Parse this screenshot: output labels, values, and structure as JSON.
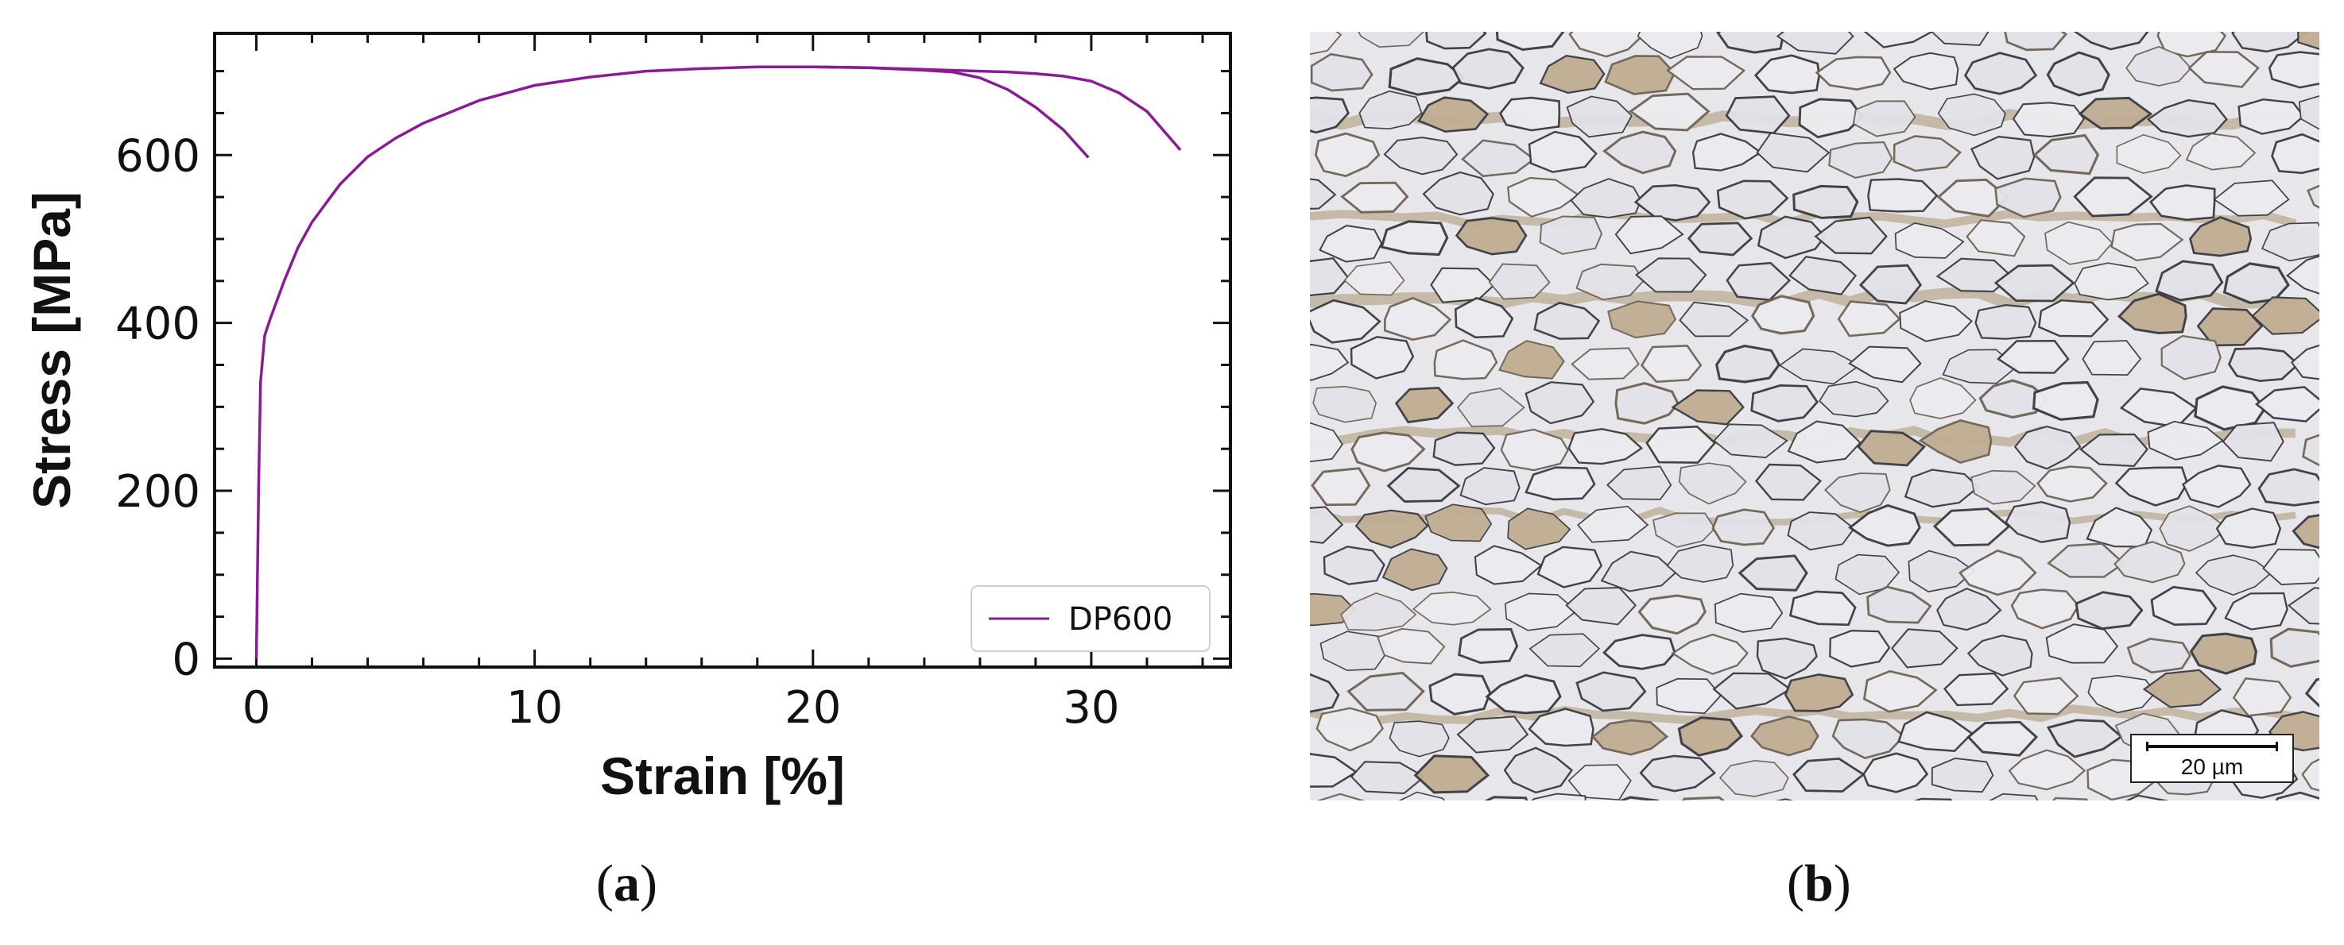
{
  "chart_data": {
    "type": "line",
    "xlabel": "Strain [%]",
    "ylabel": "Stress [MPa]",
    "xlim": [
      -1.5,
      35
    ],
    "ylim": [
      -10,
      745
    ],
    "xticks": [
      0,
      10,
      20,
      30
    ],
    "yticks": [
      0,
      200,
      400,
      600
    ],
    "grid": false,
    "legend_position": "bottom-right",
    "color": "#8B1A96",
    "series": [
      {
        "name": "DP600",
        "x": [
          0,
          0.08,
          0.15,
          0.3,
          0.5,
          1,
          1.5,
          2,
          3,
          4,
          5,
          6,
          8,
          10,
          12,
          14,
          16,
          18,
          20,
          22,
          24,
          25,
          26,
          27,
          28,
          29,
          29.9
        ],
        "y": [
          0,
          200,
          330,
          385,
          405,
          450,
          490,
          520,
          565,
          598,
          620,
          638,
          665,
          683,
          693,
          700,
          703,
          705,
          705,
          704,
          701,
          699,
          692,
          678,
          657,
          630,
          597
        ]
      },
      {
        "name": "",
        "x": [
          20,
          22,
          24,
          26,
          27,
          28,
          29,
          30,
          31,
          32,
          33.2
        ],
        "y": [
          705,
          704,
          702,
          700,
          699,
          697,
          694,
          688,
          674,
          652,
          606
        ]
      }
    ]
  },
  "panels": {
    "a_label": "a",
    "b_label": "b"
  },
  "micrograph": {
    "scale_label": "20 µm"
  }
}
